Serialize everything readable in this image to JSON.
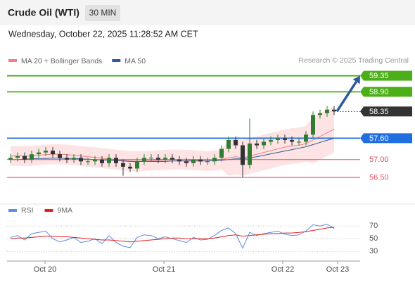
{
  "header": {
    "title": "Crude Oil (WTI)",
    "timeframe": "30 MIN",
    "datetime": "Wednesday, October 22, 2025 11:28:52 AM CET"
  },
  "chart_data": [
    {
      "type": "candlestick",
      "credit": "Research © 2025 Trading Central",
      "up_color": "#2e7d32",
      "down_color": "#333333",
      "xlim": [
        0,
        50
      ],
      "ylim": [
        55.95,
        59.6
      ],
      "open": [
        57.0,
        57.05,
        57.1,
        57.0,
        57.15,
        57.2,
        57.25,
        57.15,
        57.05,
        57.0,
        57.05,
        56.95,
        56.95,
        57.0,
        56.9,
        57.05,
        56.9,
        56.8,
        56.75,
        56.95,
        57.05,
        57.05,
        57.0,
        57.05,
        57.0,
        56.95,
        56.9,
        57.0,
        56.95,
        56.95,
        57.05,
        57.3,
        57.55,
        57.4,
        56.85,
        57.45,
        57.4,
        57.5,
        57.55,
        57.6,
        57.55,
        57.5,
        57.5,
        57.7,
        58.25,
        58.3,
        58.4
      ],
      "high": [
        57.15,
        57.2,
        57.2,
        57.25,
        57.3,
        57.35,
        57.35,
        57.25,
        57.15,
        57.15,
        57.15,
        57.05,
        57.1,
        57.1,
        57.15,
        57.15,
        57.0,
        56.9,
        57.05,
        57.15,
        57.15,
        57.15,
        57.15,
        57.15,
        57.1,
        57.05,
        57.1,
        57.1,
        57.05,
        57.15,
        57.4,
        57.65,
        57.65,
        57.5,
        58.15,
        57.55,
        57.6,
        57.65,
        57.7,
        57.7,
        57.65,
        57.6,
        57.8,
        58.35,
        58.4,
        58.5,
        58.5
      ],
      "low": [
        56.9,
        56.95,
        56.9,
        56.9,
        57.05,
        57.1,
        57.05,
        56.95,
        56.9,
        56.9,
        56.85,
        56.85,
        56.85,
        56.8,
        56.8,
        56.8,
        56.55,
        56.65,
        56.65,
        56.85,
        56.95,
        56.9,
        56.9,
        56.9,
        56.85,
        56.8,
        56.8,
        56.85,
        56.85,
        56.85,
        56.95,
        57.2,
        57.3,
        56.5,
        56.75,
        57.3,
        57.3,
        57.4,
        57.45,
        57.45,
        57.4,
        57.4,
        57.4,
        57.6,
        58.15,
        58.2,
        58.25
      ],
      "close": [
        57.05,
        57.1,
        57.0,
        57.15,
        57.2,
        57.25,
        57.15,
        57.05,
        57.0,
        57.05,
        56.95,
        56.95,
        57.0,
        56.9,
        57.05,
        56.9,
        56.8,
        56.75,
        56.95,
        57.05,
        57.05,
        57.0,
        57.05,
        57.0,
        56.95,
        56.9,
        57.0,
        56.95,
        56.95,
        57.05,
        57.3,
        57.55,
        57.4,
        56.85,
        57.45,
        57.4,
        57.5,
        57.55,
        57.6,
        57.55,
        57.5,
        57.5,
        57.7,
        58.25,
        58.3,
        58.4,
        58.35
      ],
      "series": [
        {
          "name": "MA 20 + Bollinger Bands",
          "color": "#f08080",
          "band_color": "#fde3e3",
          "values": [
            57.1,
            57.1,
            57.1,
            57.1,
            57.12,
            57.14,
            57.15,
            57.15,
            57.14,
            57.12,
            57.1,
            57.08,
            57.06,
            57.04,
            57.02,
            57.0,
            56.98,
            56.96,
            56.95,
            56.96,
            56.97,
            56.98,
            56.99,
            57.0,
            57.0,
            56.99,
            56.98,
            56.97,
            56.96,
            56.97,
            57.0,
            57.05,
            57.08,
            57.05,
            57.1,
            57.15,
            57.2,
            57.25,
            57.3,
            57.35,
            57.38,
            57.4,
            57.45,
            57.55,
            57.65,
            57.75,
            57.85
          ],
          "upper": [
            57.38,
            57.38,
            57.38,
            57.38,
            57.4,
            57.42,
            57.43,
            57.43,
            57.42,
            57.4,
            57.38,
            57.36,
            57.34,
            57.32,
            57.3,
            57.28,
            57.26,
            57.24,
            57.23,
            57.24,
            57.25,
            57.26,
            57.27,
            57.28,
            57.28,
            57.27,
            57.26,
            57.25,
            57.24,
            57.25,
            57.28,
            57.55,
            57.58,
            57.55,
            57.6,
            57.65,
            57.7,
            57.75,
            57.8,
            57.85,
            57.88,
            57.9,
            57.95,
            58.2,
            58.3,
            58.4,
            58.5
          ],
          "lower": [
            56.82,
            56.82,
            56.82,
            56.82,
            56.84,
            56.86,
            56.87,
            56.87,
            56.86,
            56.84,
            56.82,
            56.8,
            56.78,
            56.76,
            56.74,
            56.72,
            56.7,
            56.68,
            56.67,
            56.68,
            56.69,
            56.7,
            56.71,
            56.72,
            56.72,
            56.71,
            56.7,
            56.69,
            56.68,
            56.69,
            56.72,
            56.55,
            56.58,
            56.55,
            56.6,
            56.65,
            56.7,
            56.75,
            56.8,
            56.85,
            56.88,
            56.9,
            56.95,
            56.9,
            57.0,
            57.1,
            57.2
          ]
        },
        {
          "name": "MA 50",
          "color": "#2e5a9c",
          "values": [
            57.0,
            57.0,
            57.01,
            57.02,
            57.03,
            57.03,
            57.04,
            57.04,
            57.03,
            57.03,
            57.02,
            57.01,
            57.0,
            56.99,
            56.98,
            56.97,
            56.96,
            56.95,
            56.95,
            56.95,
            56.95,
            56.95,
            56.95,
            56.96,
            56.96,
            56.96,
            56.96,
            56.96,
            56.96,
            56.97,
            56.98,
            57.0,
            57.02,
            57.02,
            57.05,
            57.08,
            57.12,
            57.16,
            57.2,
            57.24,
            57.28,
            57.32,
            57.36,
            57.42,
            57.48,
            57.54,
            57.6
          ]
        }
      ],
      "levels": [
        {
          "value": 59.35,
          "label": "59.35",
          "color": "#4caf1a",
          "style": "solid",
          "box": true
        },
        {
          "value": 58.9,
          "label": "58.90",
          "color": "#4caf1a",
          "style": "solid",
          "box": true
        },
        {
          "value": 58.35,
          "label": "58.35",
          "color": "#333333",
          "style": "dotted",
          "box": true
        },
        {
          "value": 57.6,
          "label": "57.60",
          "color": "#1f6fe0",
          "style": "solid",
          "box": true
        },
        {
          "value": 57.0,
          "label": "57.00",
          "color": "#e05060",
          "style": "thin",
          "box": false
        },
        {
          "value": 56.5,
          "label": "56.50",
          "color": "#e05060",
          "style": "thin",
          "box": false
        }
      ]
    },
    {
      "type": "line",
      "xlim": [
        0,
        50
      ],
      "xticks": [
        {
          "value": 5.4,
          "label": "Oct 20"
        },
        {
          "value": 22.3,
          "label": "Oct 21"
        },
        {
          "value": 39.2,
          "label": "Oct 22"
        },
        {
          "value": 47,
          "label": "Oct 23"
        }
      ],
      "ylim": [
        18,
        88
      ],
      "yticks": [
        30,
        50,
        70
      ],
      "series": [
        {
          "name": "RSI",
          "color": "#5b8de0",
          "values": [
            52,
            55,
            48,
            58,
            60,
            62,
            50,
            45,
            48,
            52,
            44,
            46,
            50,
            42,
            55,
            44,
            38,
            36,
            52,
            56,
            55,
            50,
            53,
            50,
            47,
            44,
            52,
            48,
            49,
            55,
            63,
            67,
            58,
            35,
            60,
            55,
            58,
            60,
            62,
            57,
            55,
            56,
            62,
            72,
            70,
            73,
            66
          ]
        },
        {
          "name": "9MA",
          "color": "#e02020",
          "values": [
            50,
            51,
            51,
            52,
            53,
            54,
            54,
            53,
            53,
            52,
            51,
            50,
            49,
            48,
            48,
            47,
            46,
            45,
            46,
            47,
            48,
            49,
            50,
            51,
            51,
            50,
            50,
            50,
            50,
            51,
            53,
            55,
            56,
            54,
            55,
            56,
            57,
            58,
            58,
            59,
            59,
            60,
            61,
            63,
            65,
            67,
            68
          ]
        }
      ]
    }
  ]
}
